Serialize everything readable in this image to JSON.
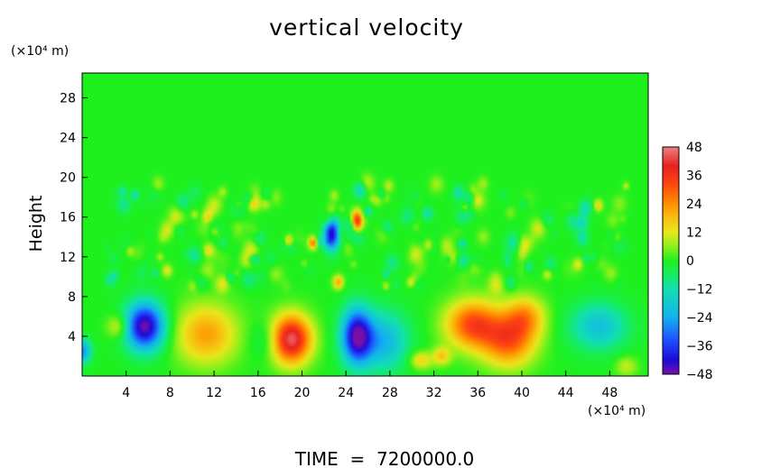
{
  "chart_data": {
    "type": "heatmap",
    "title": "vertical velocity",
    "xlabel": "",
    "ylabel": "Height",
    "x_unit_label": "(×10⁴ m)",
    "y_unit_label": "(×10⁴ m)",
    "footer": "TIME  =  7200000.0",
    "xlim": [
      0,
      51.5
    ],
    "ylim": [
      0,
      30.5
    ],
    "x_ticks": [
      4,
      8,
      12,
      16,
      20,
      24,
      28,
      32,
      36,
      40,
      44,
      48
    ],
    "y_ticks": [
      4,
      8,
      12,
      16,
      20,
      24,
      28
    ],
    "colorbar": {
      "ticks": [
        48,
        36,
        24,
        12,
        0,
        -12,
        -24,
        -36,
        -48
      ],
      "range": [
        -48,
        48
      ],
      "stops": [
        {
          "v": -48,
          "color": "#7a0fa8"
        },
        {
          "v": -42,
          "color": "#1a0ad8"
        },
        {
          "v": -33,
          "color": "#1f55ff"
        },
        {
          "v": -24,
          "color": "#12b2f0"
        },
        {
          "v": -12,
          "color": "#12e0b0"
        },
        {
          "v": -5,
          "color": "#18ef55"
        },
        {
          "v": 0,
          "color": "#1ef01e"
        },
        {
          "v": 6,
          "color": "#8ef01a"
        },
        {
          "v": 12,
          "color": "#e8e81a"
        },
        {
          "v": 18,
          "color": "#f8c010"
        },
        {
          "v": 24,
          "color": "#ff9000"
        },
        {
          "v": 32,
          "color": "#ff4810"
        },
        {
          "v": 40,
          "color": "#e82020"
        },
        {
          "v": 48,
          "color": "#f08080"
        }
      ]
    },
    "features": [
      {
        "x": 0.0,
        "y": 2.5,
        "peak": -28,
        "rx": 0.8,
        "ry": 1.2
      },
      {
        "x": 3.3,
        "y": 5.0,
        "peak": 14,
        "rx": 1.0,
        "ry": 1.2
      },
      {
        "x": 5.7,
        "y": 5.0,
        "peak": -48,
        "rx": 1.8,
        "ry": 2.4
      },
      {
        "x": 11.3,
        "y": 4.2,
        "peak": 22,
        "rx": 2.8,
        "ry": 3.0
      },
      {
        "x": 16.8,
        "y": 3.6,
        "peak": -8,
        "rx": 1.5,
        "ry": 1.8
      },
      {
        "x": 19.0,
        "y": 3.7,
        "peak": 46,
        "rx": 1.8,
        "ry": 2.4
      },
      {
        "x": 22.7,
        "y": 14.3,
        "peak": -44,
        "rx": 0.7,
        "ry": 1.6
      },
      {
        "x": 25.0,
        "y": 15.6,
        "peak": 40,
        "rx": 0.5,
        "ry": 1.0
      },
      {
        "x": 25.0,
        "y": 4.0,
        "peak": -46,
        "rx": 1.4,
        "ry": 2.8
      },
      {
        "x": 27.5,
        "y": 3.5,
        "peak": -22,
        "rx": 2.2,
        "ry": 3.0
      },
      {
        "x": 30.8,
        "y": 1.6,
        "peak": 16,
        "rx": 1.0,
        "ry": 0.9
      },
      {
        "x": 32.7,
        "y": 2.0,
        "peak": 16,
        "rx": 0.8,
        "ry": 0.9
      },
      {
        "x": 35.5,
        "y": 5.2,
        "peak": 32,
        "rx": 2.4,
        "ry": 2.4
      },
      {
        "x": 38.8,
        "y": 3.6,
        "peak": 30,
        "rx": 2.4,
        "ry": 2.6
      },
      {
        "x": 40.3,
        "y": 6.0,
        "peak": 20,
        "rx": 1.8,
        "ry": 2.0
      },
      {
        "x": 47.0,
        "y": 5.0,
        "peak": -20,
        "rx": 2.6,
        "ry": 2.4
      },
      {
        "x": 49.5,
        "y": 1.0,
        "peak": 10,
        "rx": 1.0,
        "ry": 1.0
      },
      {
        "x": 21.0,
        "y": 13.4,
        "peak": 28,
        "rx": 0.4,
        "ry": 0.6
      },
      {
        "x": 18.8,
        "y": 13.6,
        "peak": 20,
        "rx": 0.3,
        "ry": 0.5
      }
    ]
  }
}
